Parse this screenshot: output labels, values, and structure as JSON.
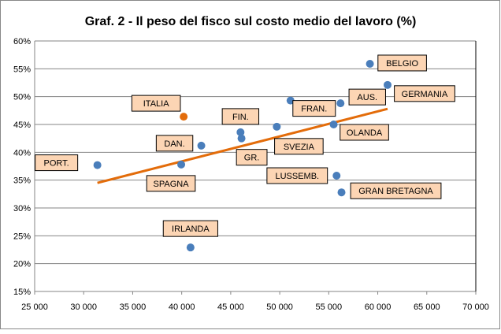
{
  "chart_data": {
    "type": "scatter",
    "title": "Graf. 2 - Il peso del fisco sul costo medio del lavoro (%)",
    "xlabel": "",
    "ylabel": "",
    "xlim": [
      25000,
      70000
    ],
    "ylim": [
      15,
      60
    ],
    "xticks": [
      25000,
      30000,
      35000,
      40000,
      45000,
      50000,
      55000,
      60000,
      65000,
      70000
    ],
    "xtick_labels": [
      "25 000",
      "30 000",
      "35 000",
      "40 000",
      "45 000",
      "50 000",
      "55 000",
      "60 000",
      "65 000",
      "70 000"
    ],
    "yticks": [
      15,
      20,
      25,
      30,
      35,
      40,
      45,
      50,
      55,
      60
    ],
    "ytick_labels": [
      "15%",
      "20%",
      "25%",
      "30%",
      "35%",
      "40%",
      "45%",
      "50%",
      "55%",
      "60%"
    ],
    "grid": "horizontal",
    "colors": {
      "point": "#4a7ebb",
      "highlight": "#e36c0a",
      "trend": "#e36c0a",
      "label_bg": "#fcd5b4"
    },
    "points": [
      {
        "label": "PORT.",
        "x": 31400,
        "y": 37.7,
        "lx": -52,
        "ly": -3
      },
      {
        "label": "SPAGNA",
        "x": 39950,
        "y": 37.8,
        "lx": -13,
        "ly": 24
      },
      {
        "label": "ITALIA",
        "x": 40200,
        "y": 46.4,
        "lx": -35,
        "ly": -17,
        "highlight": true
      },
      {
        "label": "DAN.",
        "x": 42000,
        "y": 41.2,
        "lx": -34,
        "ly": -3
      },
      {
        "label": "IRLANDA",
        "x": 40900,
        "y": 22.9,
        "lx": 0,
        "ly": -24
      },
      {
        "label": "FIN.",
        "x": 46000,
        "y": 43.6,
        "lx": 0,
        "ly": -20
      },
      {
        "label": "GR.",
        "x": 46100,
        "y": 42.5,
        "lx": 13,
        "ly": 24
      },
      {
        "label": "SVEZIA",
        "x": 49700,
        "y": 44.6,
        "lx": 28,
        "ly": 25
      },
      {
        "label": "FRAN.",
        "x": 51100,
        "y": 49.3,
        "lx": 30,
        "ly": 10
      },
      {
        "label": "AUS.",
        "x": 56200,
        "y": 48.8,
        "lx": 34,
        "ly": -8
      },
      {
        "label": "OLANDA",
        "x": 55500,
        "y": 45.0,
        "lx": 39,
        "ly": 10
      },
      {
        "label": "LUSSEMB.",
        "x": 55800,
        "y": 35.8,
        "lx": -50,
        "ly": 0
      },
      {
        "label": "GRAN BRETAGNA",
        "x": 56300,
        "y": 32.8,
        "lx": 69,
        "ly": -2
      },
      {
        "label": "BELGIO",
        "x": 59200,
        "y": 55.9,
        "lx": 41,
        "ly": -1
      },
      {
        "label": "GERMANIA",
        "x": 61000,
        "y": 52.1,
        "lx": 47,
        "ly": 11
      }
    ],
    "trendline": {
      "x": [
        31400,
        61000
      ],
      "y": [
        34.5,
        47.8
      ]
    }
  }
}
